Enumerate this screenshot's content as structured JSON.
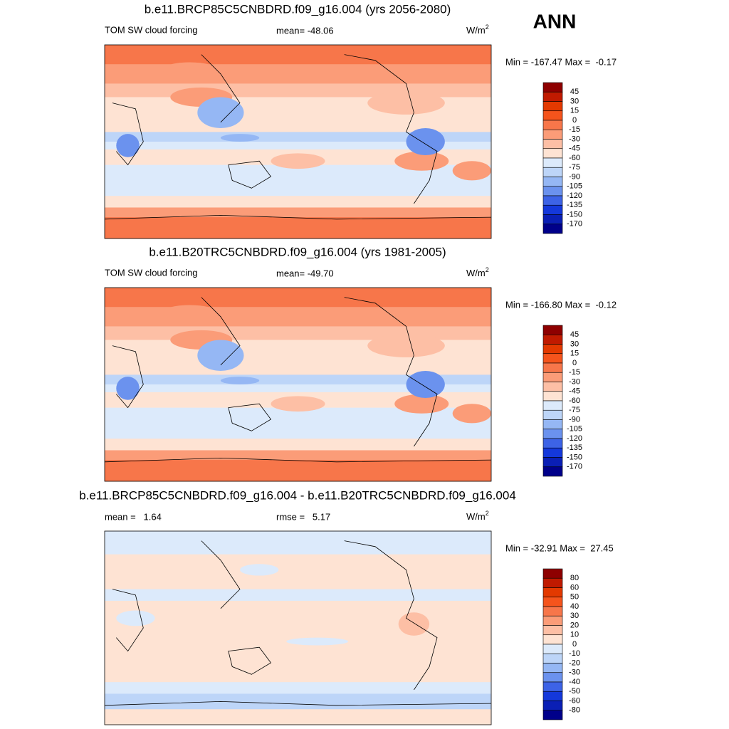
{
  "title": "ANN",
  "panels": [
    {
      "title": "b.e11.BRCP85C5CNBDRD.f09_g16.004 (yrs 2056-2080)",
      "variable": "TOM SW cloud forcing",
      "mean": "mean= -48.06",
      "units": {
        "text": "W/m",
        "superscript": "2"
      },
      "min_max": "Min = -167.47 Max =  -0.17",
      "colorbar": {
        "levels": [
          45,
          30,
          15,
          0,
          -15,
          -30,
          -45,
          -60,
          -75,
          -90,
          -105,
          -120,
          -135,
          -150,
          -170
        ],
        "colors": [
          "#8e0000",
          "#c01a00",
          "#e33900",
          "#f5541c",
          "#f7764a",
          "#fb9c78",
          "#fdbfa5",
          "#fee3d3",
          "#dceafb",
          "#bdd5f8",
          "#95b7f4",
          "#6b92ee",
          "#3d63e6",
          "#1438db",
          "#0a1fb5",
          "#00008a"
        ]
      }
    },
    {
      "title": "b.e11.B20TRC5CNBDRD.f09_g16.004 (yrs 1981-2005)",
      "variable": "TOM SW cloud forcing",
      "mean": "mean= -49.70",
      "units": {
        "text": "W/m",
        "superscript": "2"
      },
      "min_max": "Min = -166.80 Max =  -0.12",
      "colorbar": {
        "levels": [
          45,
          30,
          15,
          0,
          -15,
          -30,
          -45,
          -60,
          -75,
          -90,
          -105,
          -120,
          -135,
          -150,
          -170
        ],
        "colors": [
          "#8e0000",
          "#c01a00",
          "#e33900",
          "#f5541c",
          "#f7764a",
          "#fb9c78",
          "#fdbfa5",
          "#fee3d3",
          "#dceafb",
          "#bdd5f8",
          "#95b7f4",
          "#6b92ee",
          "#3d63e6",
          "#1438db",
          "#0a1fb5",
          "#00008a"
        ]
      }
    },
    {
      "title": "b.e11.BRCP85C5CNBDRD.f09_g16.004 - b.e11.B20TRC5CNBDRD.f09_g16.004",
      "mean": "mean =   1.64",
      "rmse": "rmse =   5.17",
      "units": {
        "text": "W/m",
        "superscript": "2"
      },
      "min_max": "Min = -32.91 Max =  27.45",
      "colorbar": {
        "levels": [
          80,
          60,
          50,
          40,
          30,
          20,
          10,
          0,
          -10,
          -20,
          -30,
          -40,
          -50,
          -60,
          -80
        ],
        "colors": [
          "#8e0000",
          "#c01a00",
          "#e33900",
          "#f5541c",
          "#f7764a",
          "#fb9c78",
          "#fdbfa5",
          "#fee3d3",
          "#dceafb",
          "#bdd5f8",
          "#95b7f4",
          "#6b92ee",
          "#3d63e6",
          "#1438db",
          "#0a1fb5",
          "#00008a"
        ]
      }
    }
  ]
}
